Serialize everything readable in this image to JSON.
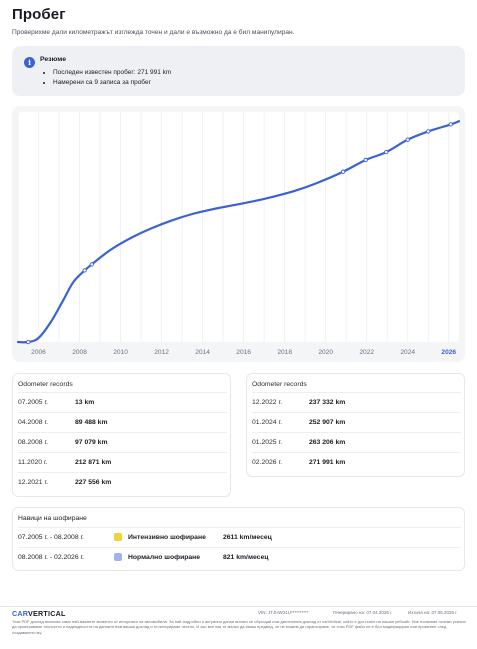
{
  "page": {
    "title": "Пробег",
    "subtitle": "Проверихме дали километражът изглежда точен и дали е възможно да е бил манипулиран."
  },
  "summary": {
    "title": "Резюме",
    "items": [
      "Последен известен пробег: 271 991 km",
      "Намерени са 9 записа за пробег"
    ]
  },
  "chart_data": {
    "type": "line",
    "x_ticks": [
      "2006",
      "2008",
      "2010",
      "2012",
      "2014",
      "2016",
      "2018",
      "2020",
      "2022",
      "2024",
      "2026"
    ],
    "current_tick": "2026",
    "x_range": [
      2005.0,
      2026.5
    ],
    "y_range": [
      0,
      280000
    ],
    "grid": "vertical",
    "line_color": "#3b62d3",
    "records": [
      {
        "x": 2005.5,
        "y": 13
      },
      {
        "x": 2008.25,
        "y": 89488
      },
      {
        "x": 2008.6,
        "y": 97079
      },
      {
        "x": 2020.85,
        "y": 212871
      },
      {
        "x": 2021.95,
        "y": 227556
      },
      {
        "x": 2022.95,
        "y": 237332
      },
      {
        "x": 2024.0,
        "y": 252907
      },
      {
        "x": 2025.0,
        "y": 263206
      },
      {
        "x": 2026.1,
        "y": 271991
      }
    ],
    "curve": [
      [
        2005.0,
        0
      ],
      [
        2005.5,
        13
      ],
      [
        2006.0,
        5000
      ],
      [
        2006.6,
        25000
      ],
      [
        2007.2,
        52000
      ],
      [
        2007.7,
        75000
      ],
      [
        2008.25,
        89488
      ],
      [
        2008.6,
        97079
      ],
      [
        2009.5,
        115000
      ],
      [
        2010.5,
        130000
      ],
      [
        2011.5,
        142000
      ],
      [
        2012.5,
        152000
      ],
      [
        2013.5,
        160000
      ],
      [
        2014.5,
        166000
      ],
      [
        2015.5,
        171000
      ],
      [
        2016.5,
        176000
      ],
      [
        2017.5,
        182000
      ],
      [
        2018.5,
        189000
      ],
      [
        2019.5,
        198000
      ],
      [
        2020.85,
        212871
      ],
      [
        2021.95,
        227556
      ],
      [
        2022.95,
        237332
      ],
      [
        2024.0,
        252907
      ],
      [
        2025.0,
        263206
      ],
      [
        2026.1,
        271991
      ],
      [
        2026.5,
        276000
      ]
    ]
  },
  "odometer": {
    "title": "Odometer records",
    "left": [
      {
        "date": "07.2005 г.",
        "value": "13 km"
      },
      {
        "date": "04.2008 г.",
        "value": "89 488 km"
      },
      {
        "date": "08.2008 г.",
        "value": "97 079 km"
      },
      {
        "date": "11.2020 г.",
        "value": "212 871 km"
      },
      {
        "date": "12.2021 г.",
        "value": "227 556 km"
      }
    ],
    "right": [
      {
        "date": "12.2022 г.",
        "value": "237 332 km"
      },
      {
        "date": "01.2024 г.",
        "value": "252 907 km"
      },
      {
        "date": "01.2025 г.",
        "value": "263 206 km"
      },
      {
        "date": "02.2026 г.",
        "value": "271 991 km"
      }
    ]
  },
  "driving": {
    "title": "Навици на шофиране",
    "rows": [
      {
        "range": "07.2005 г. - 08.2008 г.",
        "type": "Интензивно шофиране",
        "rate": "2611 km/месец",
        "color": "#f0d23a"
      },
      {
        "range": "08.2008 г. - 02.2026 г.",
        "type": "Нормално шофиране",
        "rate": "821 km/месец",
        "color": "#9fb4ef"
      }
    ]
  },
  "footer": {
    "logo_main": "CAR",
    "logo_accent": "VERTICAL",
    "vin": "VIN: JTJHW31U**********",
    "generated": "Генерирано на: 07.04.2026 г.",
    "expires": "Изтича на: 07.05.2026 г.",
    "disclaimer": "Този PDF доклад включва само най-важните моменти от историята на автомобила. За най-подробни и актуални данни винаги се обръщай към дигиталния доклад от carVertical, който е достъпен на нашия уебсайт. Ние полагаме големи усилия да проверяваме точността и надеждността на данните във вашия доклад и ги генерираме честно. И ако все пак те малко да имаш предвид, че не можем да гарантираме, че този PDF файл не е бил модифициран или променен след създаването му."
  }
}
